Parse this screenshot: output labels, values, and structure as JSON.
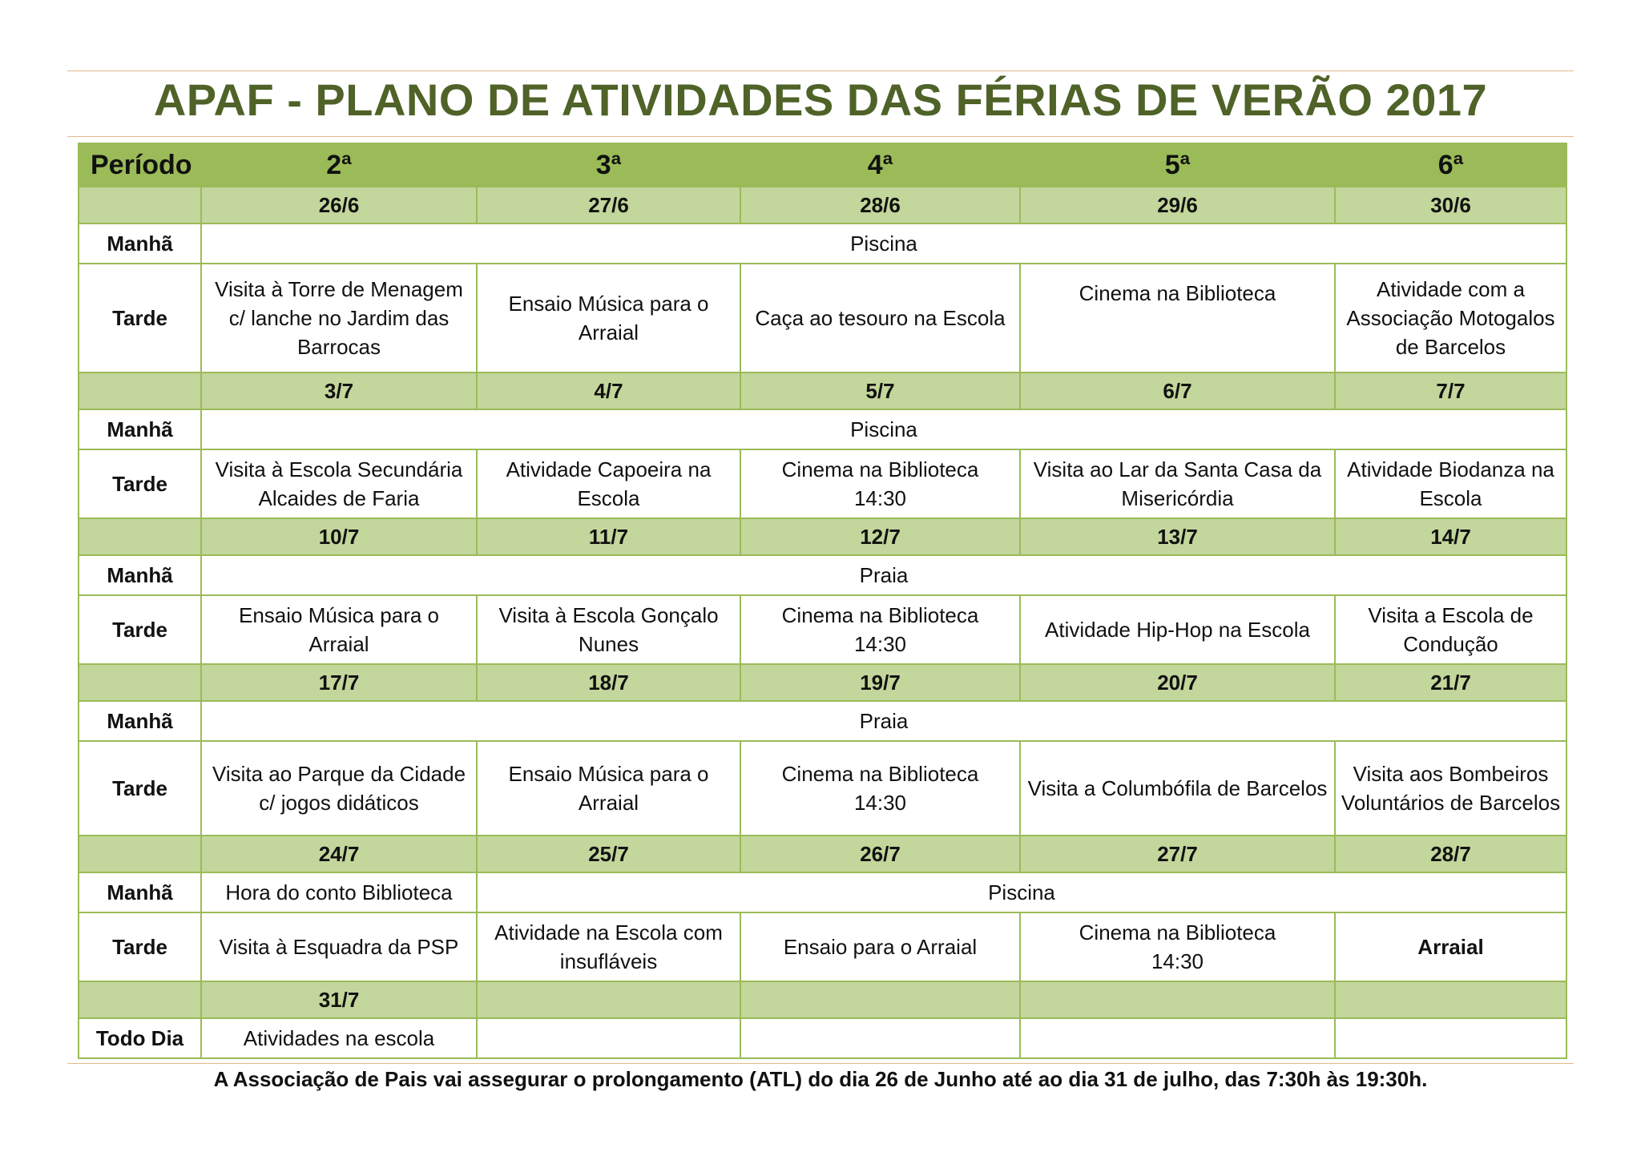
{
  "title": "APAF - PLANO DE ATIVIDADES DAS FÉRIAS DE VERÃO 2017",
  "headers": [
    "Período",
    "2ª",
    "3ª",
    "4ª",
    "5ª",
    "6ª"
  ],
  "labels": {
    "manha": "Manhã",
    "tarde": "Tarde",
    "todo_dia": "Todo Dia"
  },
  "weeks": [
    {
      "dates": [
        "26/6",
        "27/6",
        "28/6",
        "29/6",
        "30/6"
      ],
      "manha": "Piscina",
      "tarde": [
        "Visita à Torre de Menagem c/ lanche no Jardim das Barrocas",
        "Ensaio Música para o Arraial",
        "Caça ao tesouro na Escola",
        "Cinema na Biblioteca",
        "Atividade com a Associação Motogalos de Barcelos"
      ]
    },
    {
      "dates": [
        "3/7",
        "4/7",
        "5/7",
        "6/7",
        "7/7"
      ],
      "manha": "Piscina",
      "tarde": [
        "Visita à Escola Secundária Alcaides de Faria",
        "Atividade Capoeira na Escola",
        "Cinema na Biblioteca",
        "Visita ao Lar da Santa Casa da Misericórdia",
        "Atividade Biodanza na Escola"
      ],
      "tarde_time": "14:30"
    },
    {
      "dates": [
        "10/7",
        "11/7",
        "12/7",
        "13/7",
        "14/7"
      ],
      "manha": "Praia",
      "tarde": [
        "Ensaio Música para o Arraial",
        "Visita à Escola Gonçalo Nunes",
        "Cinema na Biblioteca",
        "Atividade Hip-Hop na Escola",
        "Visita a Escola de Condução"
      ],
      "tarde_time": "14:30"
    },
    {
      "dates": [
        "17/7",
        "18/7",
        "19/7",
        "20/7",
        "21/7"
      ],
      "manha": "Praia",
      "tarde": [
        "Visita ao Parque da Cidade c/ jogos didáticos",
        "Ensaio Música para o Arraial",
        "Cinema na Biblioteca",
        "Visita a Columbófila de Barcelos",
        "Visita aos Bombeiros Voluntários de Barcelos"
      ],
      "tarde_time": "14:30"
    },
    {
      "dates": [
        "24/7",
        "25/7",
        "26/7",
        "27/7",
        "28/7"
      ],
      "manha_first": "Hora do conto Biblioteca",
      "manha_rest": "Piscina",
      "tarde": [
        "Visita à Esquadra da PSP",
        "Atividade na Escola com insufláveis",
        "Ensaio para o Arraial",
        "Cinema na Biblioteca",
        "Arraial"
      ],
      "tarde_time": "14:30"
    },
    {
      "dates": [
        "31/7",
        "",
        "",
        "",
        ""
      ],
      "todo_dia": "Atividades na escola"
    }
  ],
  "footer": "A Associação de Pais vai assegurar o prolongamento (ATL) do dia 26 de Junho até ao dia 31 de julho, das 7:30h às 19:30h."
}
